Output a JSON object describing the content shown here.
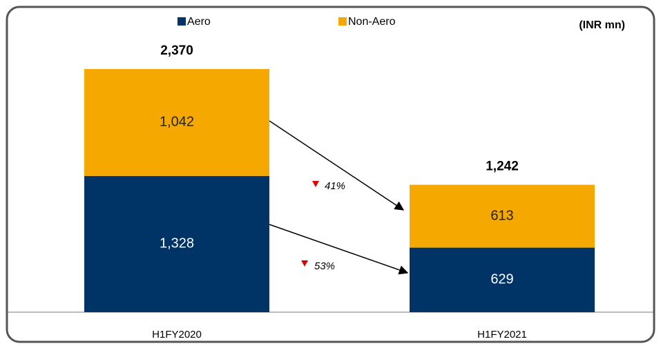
{
  "chart_data": {
    "type": "stacked-bar",
    "unit_label": "(INR mn)",
    "categories": [
      "H1FY2020",
      "H1FY2021"
    ],
    "series": [
      {
        "name": "Aero",
        "color": "#003366",
        "values": [
          1328,
          629
        ],
        "value_labels": [
          "1,328",
          "629"
        ]
      },
      {
        "name": "Non-Aero",
        "color": "#f5a800",
        "values": [
          1042,
          613
        ],
        "value_labels": [
          "1,042",
          "613"
        ]
      }
    ],
    "totals": [
      2370,
      1242
    ],
    "total_labels": [
      "2,370",
      "1,242"
    ],
    "annotations": [
      "41%",
      "53%"
    ]
  }
}
